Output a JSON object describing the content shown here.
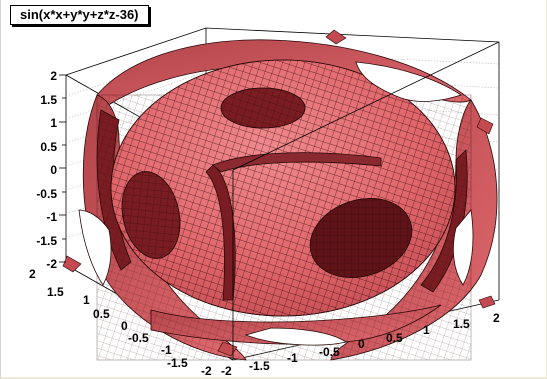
{
  "plot": {
    "title": "sin(x*x+y*y+z*z-36)",
    "surface_color": "#e86a6e",
    "surface_dark": "#7a1d22",
    "mesh_color": "#2a0808",
    "frame_color": "#000000",
    "gridline_color": "#999999"
  },
  "axes": {
    "z_ticks": [
      "2",
      "1.5",
      "1",
      "0.5",
      "0",
      "-0.5",
      "-1",
      "-1.5",
      "-2"
    ],
    "y_ticks": [
      "2",
      "1.5",
      "1",
      "0.5",
      "0",
      "-0.5",
      "-1",
      "-1.5",
      "-2"
    ],
    "x_ticks": [
      "-2",
      "-1.5",
      "-1",
      "-0.5",
      "0",
      "0.5",
      "1",
      "1.5",
      "2"
    ]
  }
}
